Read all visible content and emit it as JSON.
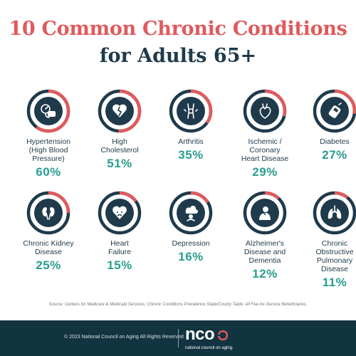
{
  "title": {
    "line1": "10 Common Chronic Conditions",
    "line2": "for Adults 65+"
  },
  "conditions": [
    {
      "label_lines": [
        "Hypertension",
        "(High Blood",
        "Pressure)"
      ],
      "percent": "60%",
      "icon": "blood-pressure-cuff-icon"
    },
    {
      "label_lines": [
        "High",
        "Cholesterol"
      ],
      "percent": "51%",
      "icon": "broken-heart-icon"
    },
    {
      "label_lines": [
        "Arthritis"
      ],
      "percent": "35%",
      "icon": "knee-joint-icon"
    },
    {
      "label_lines": [
        "Ischemic /",
        "Coronary",
        "Heart Disease"
      ],
      "percent": "29%",
      "icon": "heart-organ-icon"
    },
    {
      "label_lines": [
        "Diabetes"
      ],
      "percent": "27%",
      "icon": "glucose-meter-icon"
    },
    {
      "label_lines": [
        "Chronic Kidney",
        "Disease"
      ],
      "percent": "25%",
      "icon": "kidneys-icon"
    },
    {
      "label_lines": [
        "Heart",
        "Failure"
      ],
      "percent": "15%",
      "icon": "sad-heart-icon"
    },
    {
      "label_lines": [
        "Depression"
      ],
      "percent": "16%",
      "icon": "rain-cloud-head-icon"
    },
    {
      "label_lines": [
        "Alzheimer's",
        "Disease and",
        "Dementia"
      ],
      "percent": "12%",
      "icon": "person-head-in-hands-icon"
    },
    {
      "label_lines": [
        "Chronic",
        "Obstructive",
        "Pulmonary",
        "Disease"
      ],
      "percent": "11%",
      "icon": "lungs-icon"
    }
  ],
  "colors": {
    "accent_red": "#e05a5d",
    "navy": "#1f3a4b",
    "teal": "#2a9d8f",
    "footer_bg": "#123340"
  },
  "source": "Source: Centers for Medicare & Medicaid Services, Chronic Conditions Prevalence State/County Table: All Fee-for-Service Beneficiaries.",
  "footer": {
    "copyright": "© 2023 National Council on Aging All Rights Reserved",
    "logo_text": "nco",
    "logo_subtext": "national council on aging."
  }
}
